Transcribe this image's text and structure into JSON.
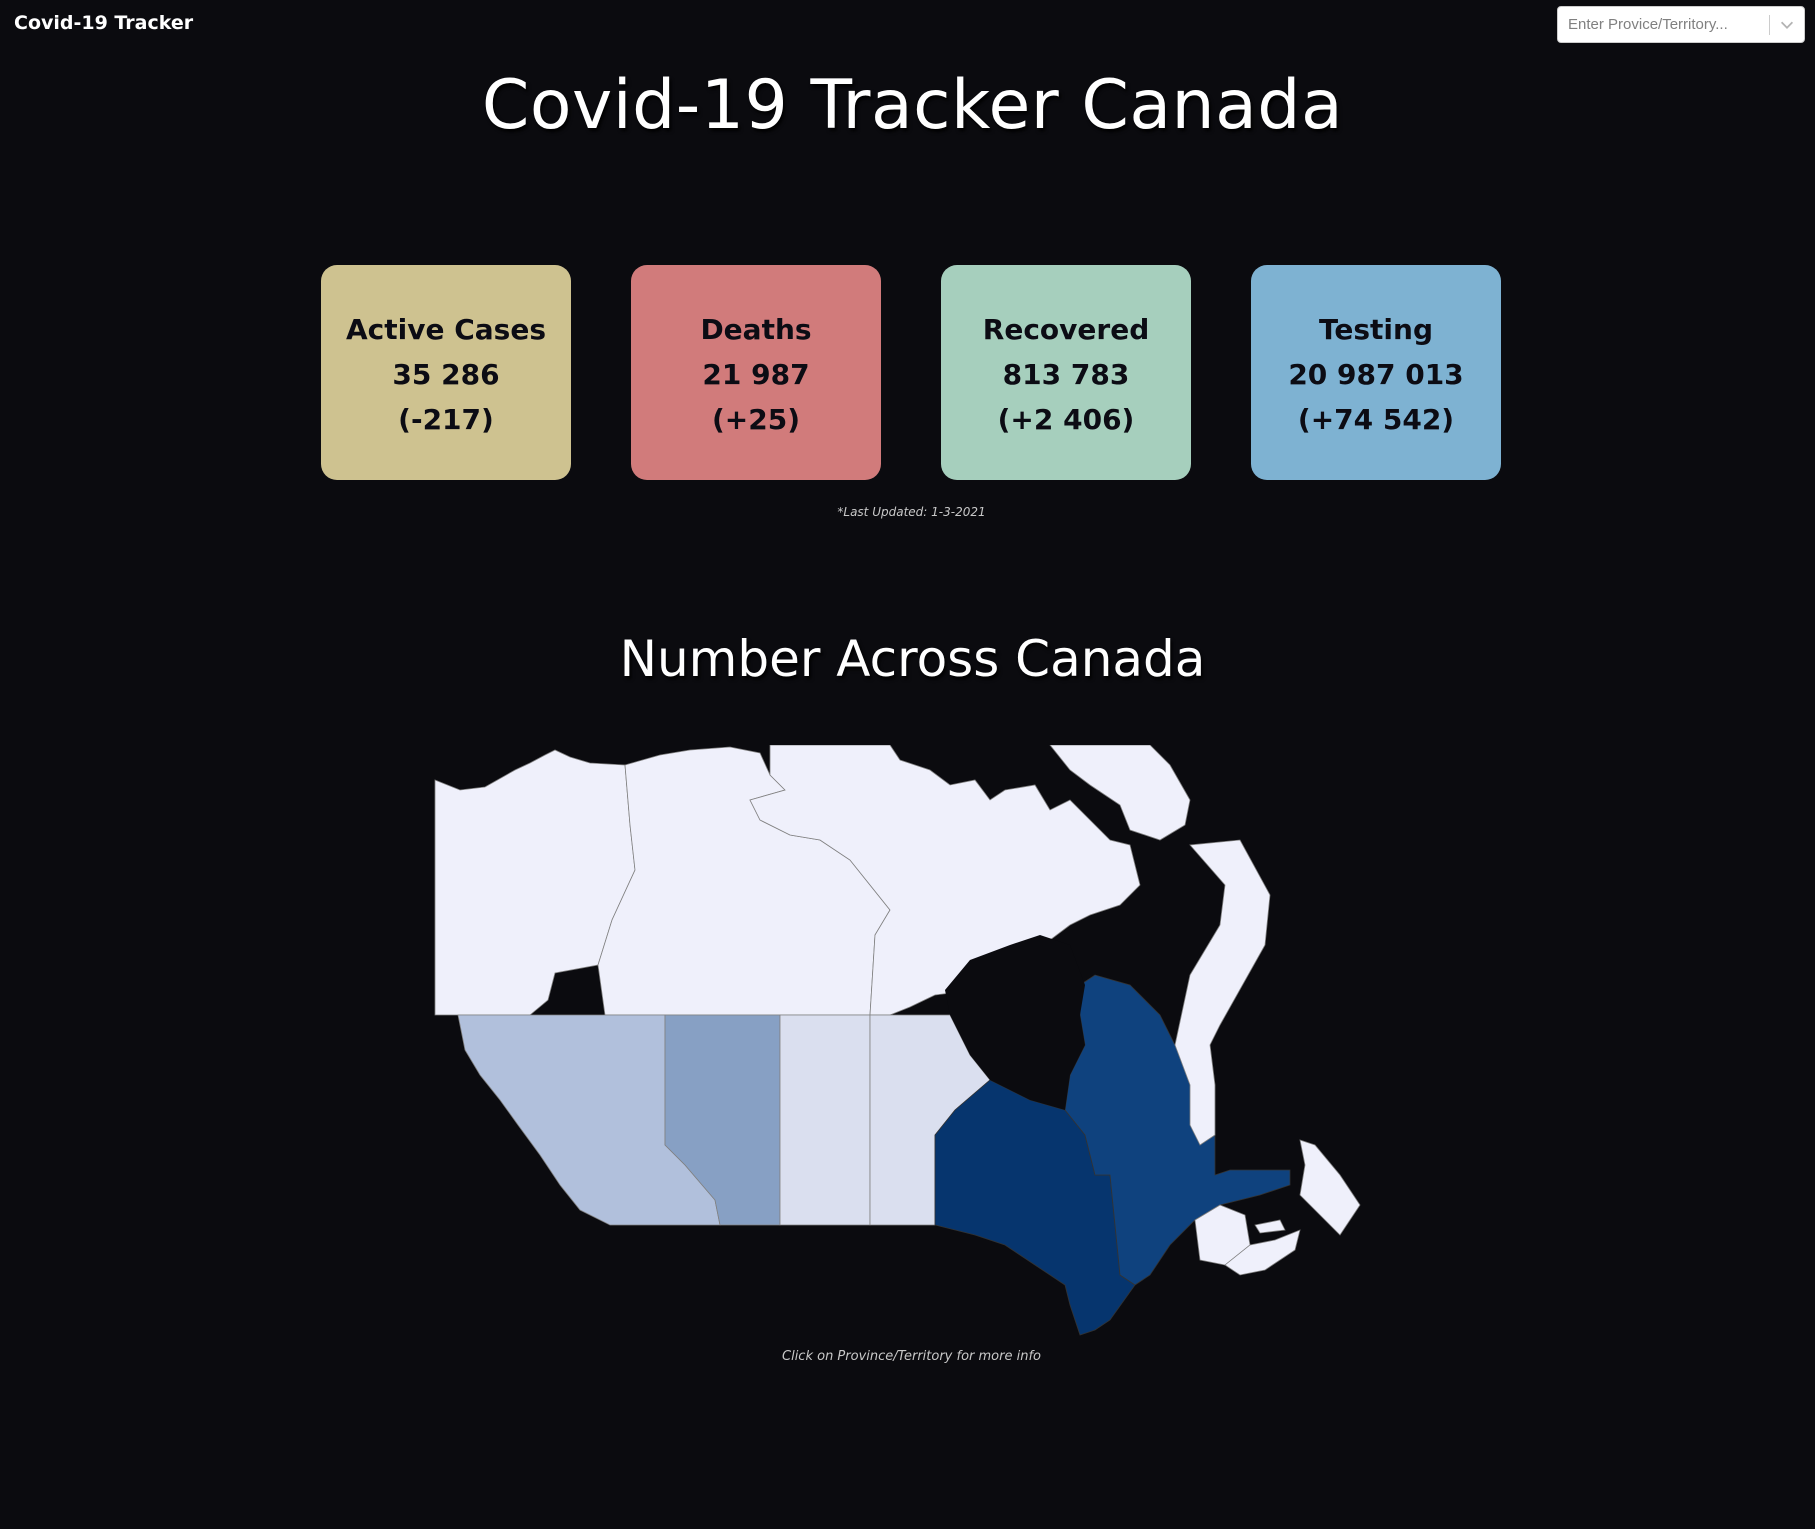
{
  "header": {
    "brand": "Covid-19 Tracker",
    "search_placeholder": "Enter Provice/Territory...",
    "dropdown_icon": "chevron-down-icon"
  },
  "main": {
    "title": "Covid-19 Tracker Canada",
    "last_updated": "*Last Updated: 1-3-2021"
  },
  "stats": [
    {
      "label": "Active Cases",
      "value": "35 286",
      "delta": "(-217)",
      "color": "#cec290"
    },
    {
      "label": "Deaths",
      "value": "21 987",
      "delta": "(+25)",
      "color": "#d17b7b"
    },
    {
      "label": "Recovered",
      "value": "813 783",
      "delta": "(+2 406)",
      "color": "#a6cfbd"
    },
    {
      "label": "Testing",
      "value": "20 987 013",
      "delta": "(+74 542)",
      "color": "#7eb2d2"
    }
  ],
  "map": {
    "title": "Number Across Canada",
    "hint": "Click on Province/Territory for more info",
    "regions": [
      {
        "name": "Yukon",
        "color": "#eff0fb"
      },
      {
        "name": "Northwest Territories",
        "color": "#eff0fb"
      },
      {
        "name": "Nunavut",
        "color": "#eff0fb"
      },
      {
        "name": "British Columbia",
        "color": "#b1c0dc"
      },
      {
        "name": "Alberta",
        "color": "#87a0c4"
      },
      {
        "name": "Saskatchewan",
        "color": "#dadfef"
      },
      {
        "name": "Manitoba",
        "color": "#dadfef"
      },
      {
        "name": "Ontario",
        "color": "#06356e"
      },
      {
        "name": "Quebec",
        "color": "#0f427e"
      },
      {
        "name": "Newfoundland and Labrador",
        "color": "#eff0fb"
      },
      {
        "name": "New Brunswick",
        "color": "#eff0fb"
      },
      {
        "name": "Nova Scotia",
        "color": "#eff0fb"
      },
      {
        "name": "Prince Edward Island",
        "color": "#eff0fb"
      }
    ]
  }
}
